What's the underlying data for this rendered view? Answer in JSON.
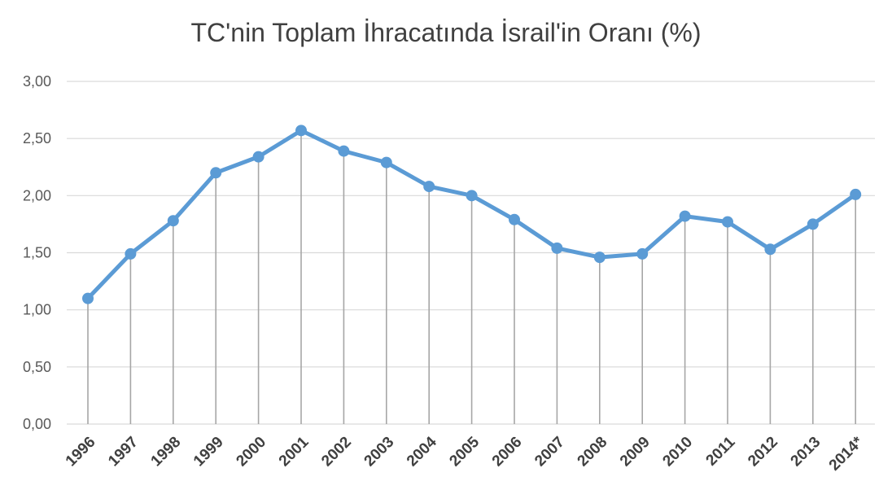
{
  "chart_data": {
    "type": "line",
    "title": "TC'nin Toplam İhracatında İsrail'in Oranı (%)",
    "xlabel": "",
    "ylabel": "",
    "categories": [
      "1996",
      "1997",
      "1998",
      "1999",
      "2000",
      "2001",
      "2002",
      "2003",
      "2004",
      "2005",
      "2006",
      "2007",
      "2008",
      "2009",
      "2010",
      "2011",
      "2012",
      "2013",
      "2014*"
    ],
    "series": [
      {
        "values": [
          1.1,
          1.49,
          1.78,
          2.2,
          2.34,
          2.57,
          2.39,
          2.29,
          2.08,
          2.0,
          1.79,
          1.54,
          1.46,
          1.49,
          1.82,
          1.77,
          1.53,
          1.75,
          2.01
        ]
      }
    ],
    "ylim": [
      0,
      3
    ],
    "yticks": [
      "0,00",
      "0,50",
      "1,00",
      "1,50",
      "2,00",
      "2,50",
      "3,00"
    ],
    "grid": true,
    "drop_lines": true,
    "colors": {
      "line": "#5b9bd5",
      "marker": "#5b9bd5",
      "grid": "#d9d9d9",
      "drop_line": "#a6a6a6"
    }
  }
}
